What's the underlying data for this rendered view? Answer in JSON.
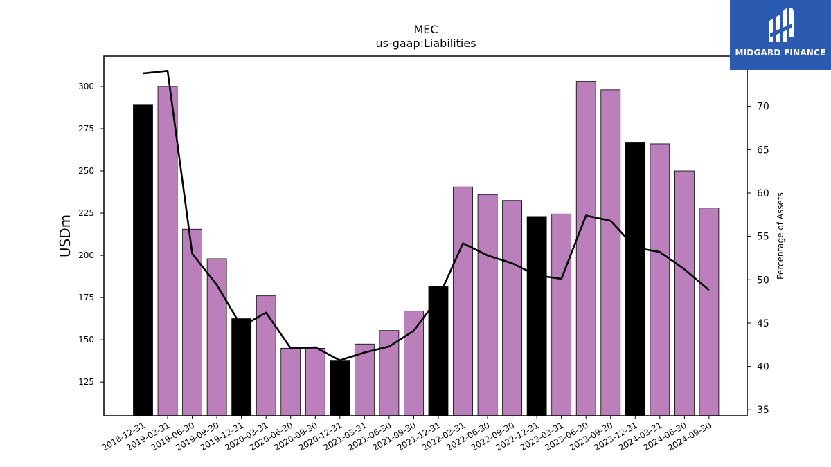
{
  "chart_data": {
    "type": "bar",
    "title": "MEC",
    "subtitle": "us-gaap:Liabilities",
    "ylabel": "USDm",
    "ylabel_right": "Percentage of Assets",
    "ylim": [
      105,
      318
    ],
    "ylim_right": [
      34.3,
      75.8
    ],
    "yticks": [
      125,
      150,
      175,
      200,
      225,
      250,
      275,
      300
    ],
    "yticks_right": [
      35,
      40,
      45,
      50,
      55,
      60,
      65,
      70
    ],
    "categories": [
      "2018-12-31",
      "2019-03-31",
      "2019-06-30",
      "2019-09-30",
      "2019-12-31",
      "2020-03-31",
      "2020-06-30",
      "2020-09-30",
      "2020-12-31",
      "2021-03-31",
      "2021-06-30",
      "2021-09-30",
      "2021-12-31",
      "2022-03-31",
      "2022-06-30",
      "2022-09-30",
      "2022-12-31",
      "2023-03-31",
      "2023-06-30",
      "2023-09-30",
      "2023-12-31",
      "2024-03-31",
      "2024-06-30",
      "2024-09-30"
    ],
    "series": [
      {
        "type": "bar",
        "values": [
          289,
          300,
          215.5,
          198,
          162.5,
          176,
          145,
          145,
          137.5,
          147.5,
          155.5,
          167,
          181.5,
          240.5,
          236,
          232.5,
          223,
          224.5,
          303,
          298,
          267,
          266,
          250,
          228
        ]
      },
      {
        "type": "line",
        "axis": "right",
        "values": [
          73.8,
          74.1,
          53.0,
          49.4,
          44.6,
          46.2,
          42.1,
          42.2,
          40.7,
          41.6,
          42.3,
          44.1,
          47.9,
          54.2,
          52.8,
          51.9,
          50.5,
          50.1,
          57.4,
          56.8,
          53.7,
          53.2,
          51.2,
          48.8
        ]
      }
    ],
    "bar_colors": {
      "annual": "#000000",
      "quarterly": "#bb7fbc"
    },
    "annual_categories": [
      "2018-12-31",
      "2019-12-31",
      "2020-12-31",
      "2021-12-31",
      "2022-12-31",
      "2023-12-31"
    ],
    "line_color": "#000000",
    "grid": false,
    "legend": "none"
  },
  "logo": {
    "text": "MIDGARD FINANCE",
    "icon": "midgard-logo-icon",
    "background": "#2a5bb0"
  }
}
